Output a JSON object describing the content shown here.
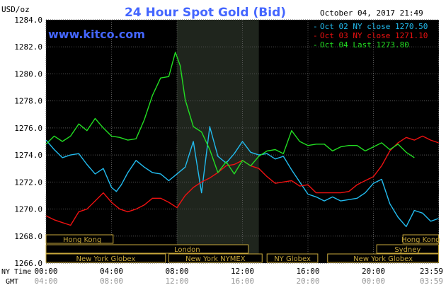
{
  "chart_data": {
    "type": "line",
    "title": "24 Hour Spot Gold (Bid)",
    "ylabel": "USD/oz",
    "watermark": "www.kitco.com",
    "timestamp": "October 04, 2017 21:49",
    "ylim": [
      1266.0,
      1284.0
    ],
    "y_ticks": [
      "1284.0",
      "1282.0",
      "1280.0",
      "1278.0",
      "1276.0",
      "1274.0",
      "1272.0",
      "1270.0",
      "1268.0",
      "1266.0"
    ],
    "x_label_ny": "NY Time",
    "x_label_gmt": "GMT",
    "x_ticks_ny": [
      "00:00",
      "04:00",
      "08:00",
      "12:00",
      "16:00",
      "20:00",
      "23:59"
    ],
    "x_ticks_gmt": [
      "04:00",
      "08:00",
      "12:00",
      "16:00",
      "20:00",
      "00:00",
      "03:59"
    ],
    "x_tick_hours": [
      0,
      4,
      8,
      12,
      16,
      20,
      23.98
    ],
    "shaded_hours": [
      8,
      13
    ],
    "colors": {
      "background": "#000000",
      "grid": "#555555",
      "title": "#4466ff",
      "shade": "#1f251d"
    },
    "legend": [
      {
        "label": "Oct 02 NY close 1270.50",
        "color": "#22bbee"
      },
      {
        "label": "Oct 03 NY close 1271.10",
        "color": "#ee1111"
      },
      {
        "label": "Oct 04 Last 1273.80",
        "color": "#22dd22"
      }
    ],
    "series": [
      {
        "name": "Oct 02",
        "color": "#22bbee",
        "x": [
          0,
          0.5,
          1,
          1.5,
          2,
          2.5,
          3,
          3.5,
          4,
          4.3,
          4.6,
          5,
          5.5,
          6,
          6.5,
          7,
          7.5,
          8,
          8.5,
          9,
          9.5,
          10,
          10.5,
          11,
          11.5,
          12,
          12.5,
          13,
          13.5,
          14,
          14.5,
          15,
          15.5,
          16,
          16.5,
          17,
          17.5,
          18,
          18.5,
          19,
          19.5,
          20,
          20.5,
          21,
          21.5,
          22,
          22.5,
          23,
          23.5,
          23.98
        ],
        "values": [
          1275.1,
          1274.4,
          1273.8,
          1274.0,
          1274.1,
          1273.3,
          1272.6,
          1273.0,
          1271.6,
          1271.3,
          1271.8,
          1272.7,
          1273.6,
          1273.1,
          1272.7,
          1272.6,
          1272.1,
          1272.6,
          1273.1,
          1275.0,
          1271.2,
          1276.1,
          1273.9,
          1273.4,
          1274.1,
          1275.0,
          1274.2,
          1274.0,
          1274.1,
          1273.7,
          1273.9,
          1272.9,
          1272.0,
          1271.1,
          1270.9,
          1270.6,
          1270.9,
          1270.6,
          1270.7,
          1270.8,
          1271.2,
          1271.9,
          1272.2,
          1270.4,
          1269.4,
          1268.7,
          1269.9,
          1269.7,
          1269.1,
          1269.3
        ]
      },
      {
        "name": "Oct 03",
        "color": "#ee1111",
        "x": [
          0,
          0.5,
          1,
          1.5,
          2,
          2.5,
          3,
          3.5,
          4,
          4.5,
          5,
          5.5,
          6,
          6.5,
          7,
          7.5,
          8,
          8.5,
          9,
          9.5,
          10,
          10.5,
          11,
          11.5,
          12,
          12.5,
          13,
          13.5,
          14,
          14.5,
          15,
          15.5,
          16,
          16.5,
          17,
          17.5,
          18,
          18.5,
          19,
          19.5,
          20,
          20.5,
          21,
          21.5,
          22,
          22.5,
          23,
          23.5,
          23.98
        ],
        "values": [
          1269.5,
          1269.2,
          1269.0,
          1268.8,
          1269.8,
          1270.0,
          1270.6,
          1271.2,
          1270.5,
          1270.0,
          1269.8,
          1270.0,
          1270.3,
          1270.8,
          1270.8,
          1270.5,
          1270.1,
          1271.0,
          1271.6,
          1272.0,
          1272.3,
          1272.7,
          1273.2,
          1273.3,
          1273.6,
          1273.2,
          1273.0,
          1272.4,
          1271.9,
          1272.0,
          1272.1,
          1271.7,
          1271.8,
          1271.2,
          1271.2,
          1271.2,
          1271.2,
          1271.3,
          1271.8,
          1272.1,
          1272.4,
          1273.2,
          1274.3,
          1274.9,
          1275.3,
          1275.1,
          1275.4,
          1275.1,
          1274.9
        ]
      },
      {
        "name": "Oct 04",
        "color": "#22dd22",
        "x": [
          0,
          0.5,
          1,
          1.5,
          2,
          2.5,
          3,
          3.5,
          4,
          4.5,
          5,
          5.5,
          6,
          6.5,
          7,
          7.5,
          7.9,
          8.2,
          8.5,
          9,
          9.5,
          10,
          10.5,
          11,
          11.5,
          12,
          12.5,
          13,
          13.5,
          14,
          14.5,
          15,
          15.5,
          16,
          16.5,
          17,
          17.5,
          18,
          18.5,
          19,
          19.5,
          20,
          20.5,
          21,
          21.5,
          22,
          22.5
        ],
        "values": [
          1274.8,
          1275.4,
          1275.0,
          1275.4,
          1276.3,
          1275.8,
          1276.7,
          1276.0,
          1275.4,
          1275.3,
          1275.1,
          1275.2,
          1276.6,
          1278.4,
          1279.7,
          1279.8,
          1281.6,
          1280.6,
          1278.1,
          1276.1,
          1275.7,
          1274.4,
          1272.7,
          1273.5,
          1272.6,
          1273.6,
          1273.2,
          1273.9,
          1274.3,
          1274.4,
          1274.1,
          1275.8,
          1275.0,
          1274.7,
          1274.8,
          1274.8,
          1274.3,
          1274.6,
          1274.7,
          1274.7,
          1274.3,
          1274.6,
          1274.9,
          1274.4,
          1274.8,
          1274.2,
          1273.8
        ]
      }
    ],
    "sessions": [
      {
        "label": "Hong Kong",
        "start": 0,
        "end": 4.1,
        "row": 0,
        "align": "left"
      },
      {
        "label": "London",
        "start": 0,
        "end": 12.35,
        "row": 1,
        "align": "right"
      },
      {
        "label": "New York Globex",
        "start": 0,
        "end": 7.3,
        "row": 2,
        "align": "center"
      },
      {
        "label": "New York NYMEX",
        "start": 7.5,
        "end": 13.2,
        "row": 2,
        "align": "center"
      },
      {
        "label": "NY Globex",
        "start": 13.5,
        "end": 16.6,
        "row": 2,
        "align": "center"
      },
      {
        "label": "Hong Kong",
        "start": 21.8,
        "end": 23.98,
        "row": 0,
        "align": "center"
      },
      {
        "label": "Sydney",
        "start": 20.2,
        "end": 23.98,
        "row": 1,
        "align": "center"
      },
      {
        "label": "New York Globex",
        "start": 17.2,
        "end": 23.98,
        "row": 2,
        "align": "center"
      }
    ]
  }
}
